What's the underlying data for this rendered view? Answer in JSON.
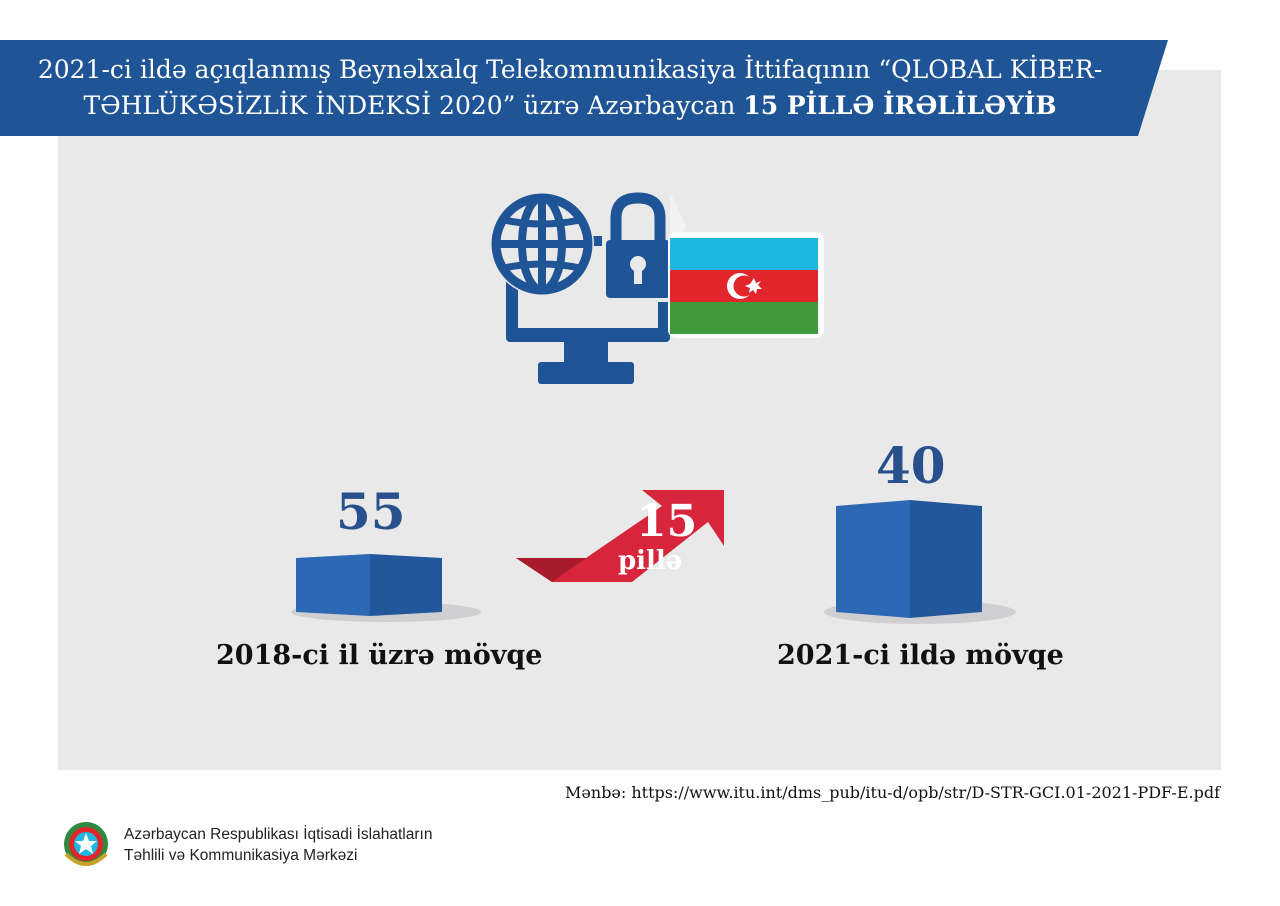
{
  "header": {
    "line1": "2021-ci ildə açıqlanmış Beynəlxalq Telekommunikasiya İttifaqının “QLOBAL KİBER-",
    "line2_normal": "TƏHLÜKƏSİZLİK İNDEKSİ 2020” üzrə Azərbaycan ",
    "line2_bold": "15 PİLLƏ İRƏLİLƏYİB"
  },
  "icons": {
    "computer": "globe-monitor-icon",
    "lock": "padlock-icon",
    "flag": "azerbaijan-flag"
  },
  "ranks": {
    "before": {
      "value": "55",
      "label": "2018-ci il üzrə mövqe"
    },
    "after": {
      "value": "40",
      "label": "2021-ci ildə mövqe"
    },
    "change": {
      "value": "15",
      "unit": "pillə"
    }
  },
  "footer": {
    "source": "Mənbə: https://www.itu.int/dms_pub/itu-d/opb/str/D-STR-GCI.01-2021-PDF-E.pdf",
    "org_line1": "Azərbaycan Respublikası İqtisadi İslahatların",
    "org_line2": "Təhlili və Kommunikasiya Mərkəzi"
  },
  "colors": {
    "brand_blue": "#1f5596",
    "box_blue": "#2c68b3",
    "arrow_red": "#d7263b",
    "flag_blue": "#1fb6e0",
    "flag_red": "#e2252b",
    "flag_green": "#3e9a3a"
  }
}
